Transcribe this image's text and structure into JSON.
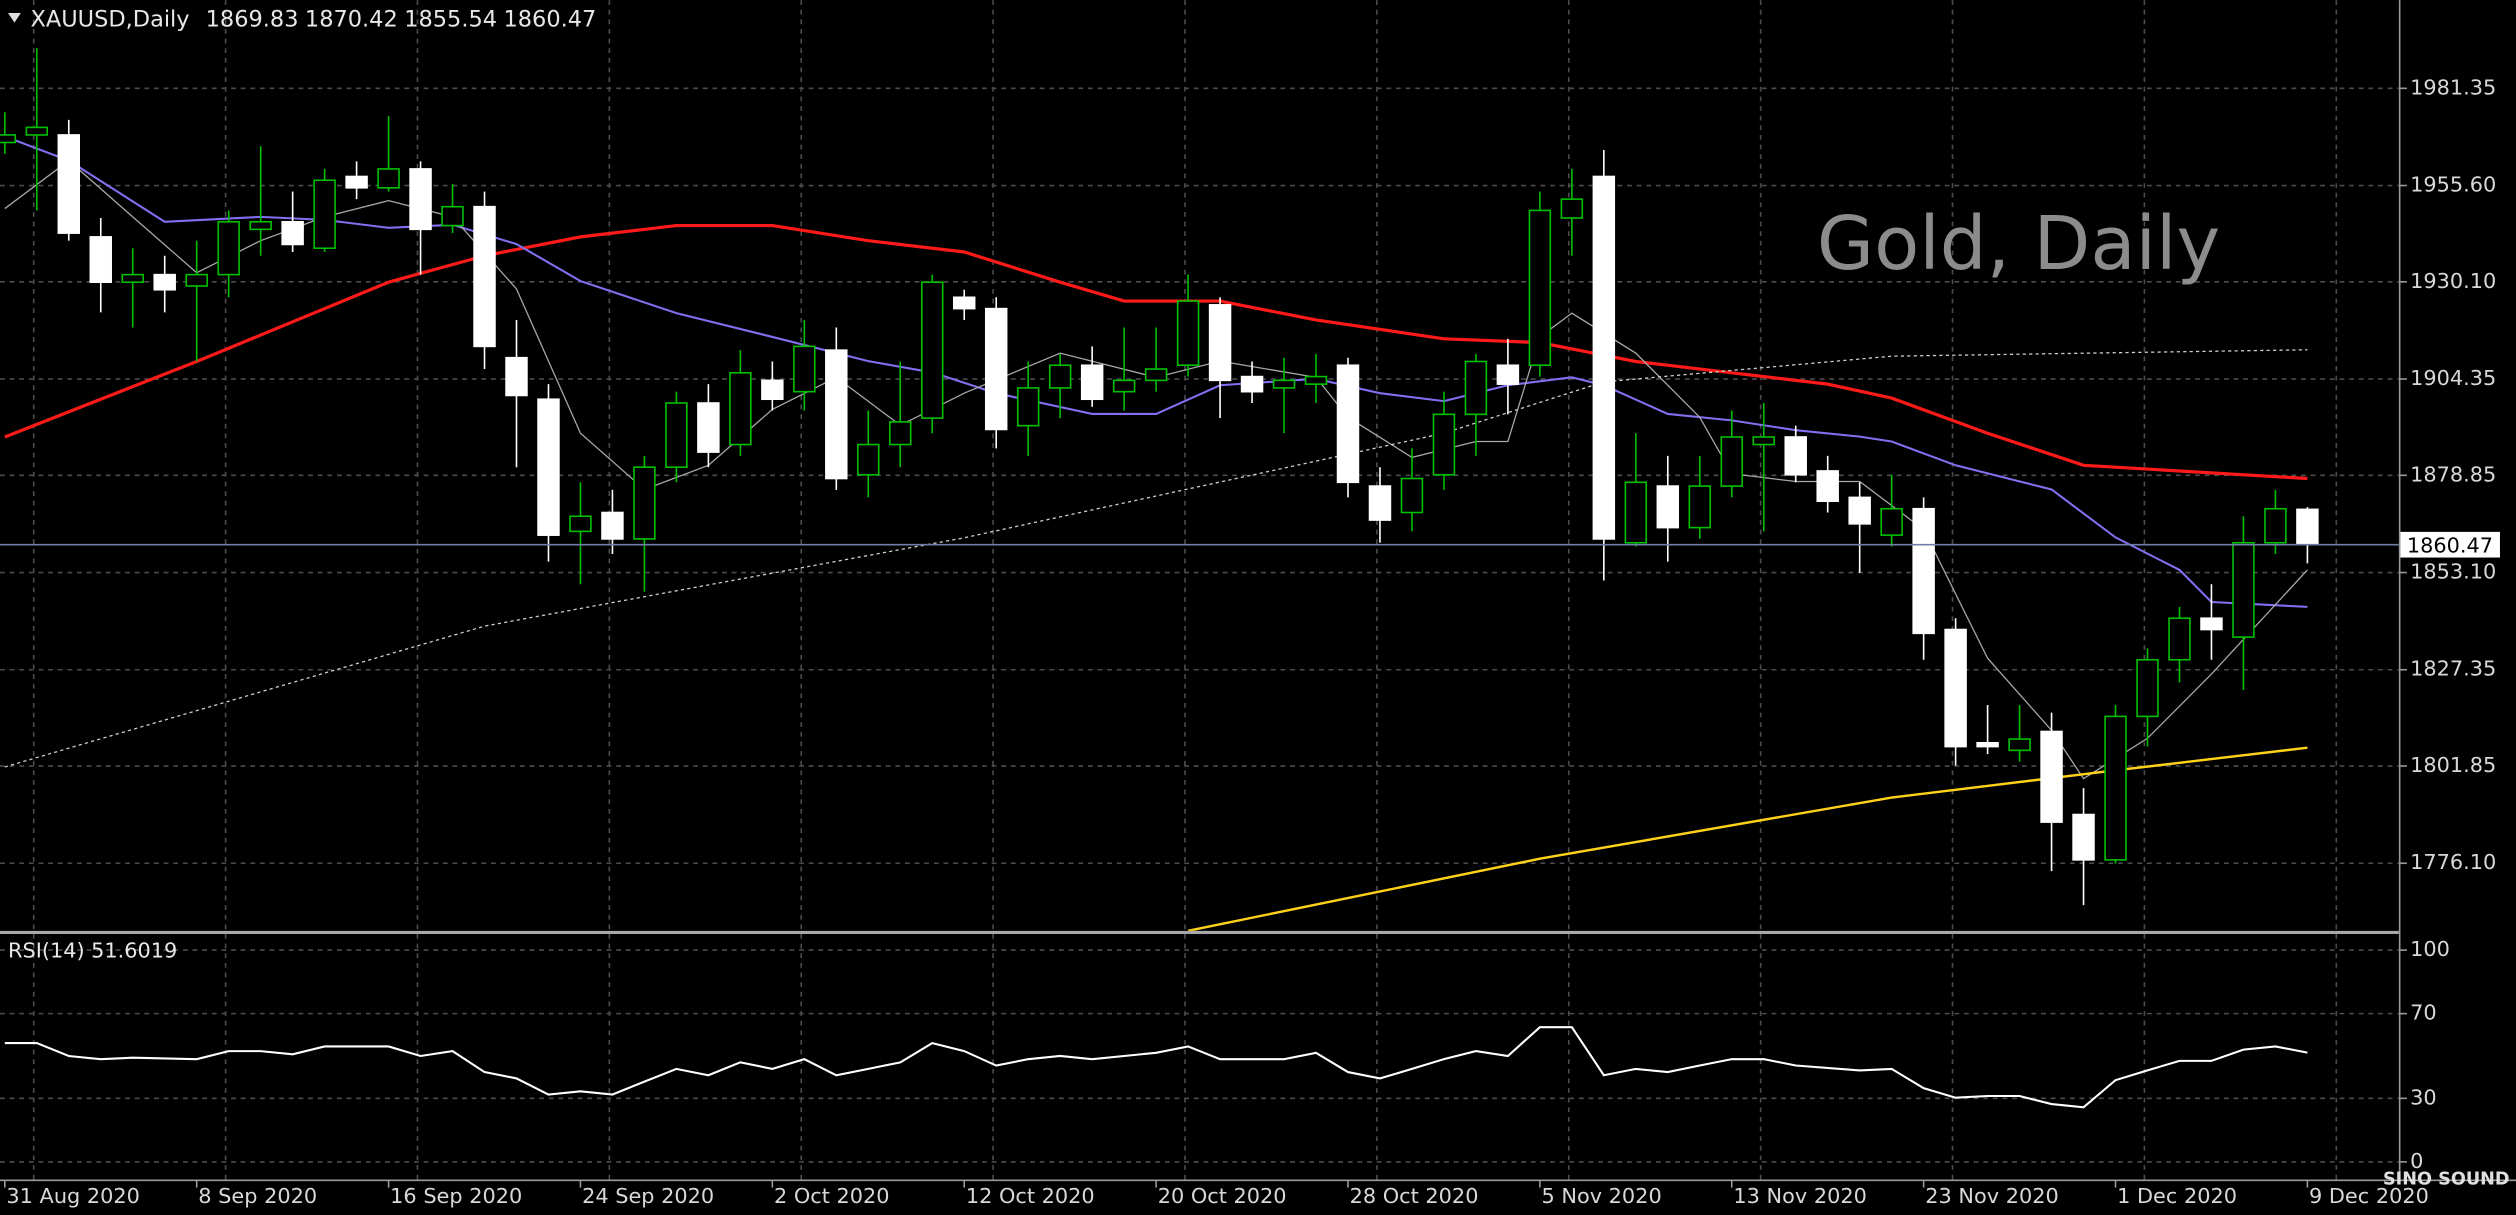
{
  "chart_data": {
    "type": "candlestick",
    "symbol": "XAUUSD,Daily",
    "watermark": "Gold, Daily",
    "branding": "SINO SOUND",
    "categories": [
      "31 Aug 2020",
      null,
      null,
      null,
      null,
      null,
      "8 Sep 2020",
      null,
      null,
      null,
      null,
      null,
      "16 Sep 2020",
      null,
      null,
      null,
      null,
      null,
      "24 Sep 2020",
      null,
      null,
      null,
      null,
      null,
      "2 Oct 2020",
      null,
      null,
      null,
      null,
      null,
      "12 Oct 2020",
      null,
      null,
      null,
      null,
      null,
      "20 Oct 2020",
      null,
      null,
      null,
      null,
      null,
      "28 Oct 2020",
      null,
      null,
      null,
      null,
      null,
      "5 Nov 2020",
      null,
      null,
      null,
      null,
      null,
      "13 Nov 2020",
      null,
      null,
      null,
      null,
      null,
      "23 Nov 2020",
      null,
      null,
      null,
      null,
      null,
      "1 Dec 2020",
      null,
      null,
      null,
      null,
      null,
      "9 Dec 2020"
    ],
    "open": [
      1967,
      1969,
      1969,
      1942,
      1930,
      1932,
      1929,
      1932,
      1944,
      1946,
      1939,
      1958,
      1955,
      1960,
      1945,
      1950,
      1910,
      1899,
      1864,
      1869,
      1862,
      1881,
      1898,
      1887,
      1904,
      1901,
      1912,
      1879,
      1887,
      1894,
      1926,
      1923,
      1892,
      1902,
      1908,
      1901,
      1904,
      1908,
      1924,
      1905,
      1902,
      1903,
      1908,
      1876,
      1869,
      1879,
      1895,
      1908,
      1908,
      1947,
      1958,
      1861,
      1876,
      1865,
      1876,
      1887,
      1889,
      1880,
      1873,
      1863,
      1870,
      1838,
      1808,
      1806,
      1811,
      1789,
      1777,
      1815,
      1830,
      1841,
      1836,
      1861,
      1869.83
    ],
    "high": [
      1975,
      1992,
      1973,
      1947,
      1939,
      1937,
      1941,
      1949,
      1966,
      1954,
      1960,
      1962,
      1974,
      1962,
      1956,
      1954,
      1920,
      1903,
      1877,
      1875,
      1884,
      1901,
      1903,
      1912,
      1909,
      1920,
      1918,
      1896,
      1909,
      1932,
      1928,
      1926,
      1909,
      1911,
      1913,
      1918,
      1918,
      1932,
      1926,
      1909,
      1910,
      1911,
      1910,
      1881,
      1886,
      1901,
      1911,
      1915,
      1954,
      1960,
      1965,
      1890,
      1884,
      1884,
      1896,
      1898,
      1892,
      1884,
      1877,
      1879,
      1873,
      1841,
      1818,
      1818,
      1816,
      1796,
      1818,
      1833,
      1844,
      1850,
      1868,
      1875,
      1870.42
    ],
    "low": [
      1964,
      1949,
      1941,
      1922,
      1918,
      1922,
      1909,
      1926,
      1937,
      1938,
      1938,
      1952,
      1954,
      1932,
      1943,
      1907,
      1881,
      1856,
      1850,
      1858,
      1848,
      1877,
      1881,
      1884,
      1896,
      1896,
      1875,
      1873,
      1881,
      1890,
      1920,
      1886,
      1884,
      1894,
      1897,
      1896,
      1901,
      1905,
      1894,
      1898,
      1890,
      1898,
      1873,
      1861,
      1864,
      1875,
      1884,
      1895,
      1905,
      1937,
      1851,
      1860,
      1856,
      1862,
      1873,
      1864,
      1877,
      1869,
      1853,
      1860,
      1830,
      1802,
      1805,
      1803,
      1774,
      1765,
      1776,
      1807,
      1824,
      1830,
      1822,
      1858,
      1855.54
    ],
    "close": [
      1969,
      1971,
      1943,
      1930,
      1932,
      1928,
      1932,
      1946,
      1946,
      1940,
      1957,
      1955,
      1960,
      1944,
      1950,
      1913,
      1900,
      1863,
      1868,
      1862,
      1881,
      1898,
      1885,
      1906,
      1899,
      1913,
      1878,
      1887,
      1893,
      1930,
      1923,
      1891,
      1902,
      1908,
      1899,
      1904,
      1907,
      1925,
      1904,
      1901,
      1904,
      1905,
      1877,
      1867,
      1878,
      1895,
      1909,
      1903,
      1949,
      1952,
      1862,
      1877,
      1865,
      1876,
      1889,
      1889,
      1879,
      1872,
      1866,
      1870,
      1837,
      1807,
      1807,
      1809,
      1787,
      1777,
      1815,
      1830,
      1841,
      1838,
      1861,
      1870,
      1860.47
    ],
    "up_color": "#00c000",
    "down_color": "#ffffff",
    "ylim": [
      1758.2,
      2004.7
    ],
    "yticks": [
      1981.35,
      {
        "value": 1955.6,
        "label": "1955.60"
      },
      {
        "value": 1930.1,
        "label": "1930.10"
      },
      1904.35,
      1878.85,
      {
        "value": 1853.1,
        "label": "1853.10"
      },
      1827.35,
      1801.85,
      {
        "value": 1776.1,
        "label": "1776.10"
      }
    ],
    "grid": true,
    "series": [
      {
        "color": "#ff1a1a",
        "width": 2,
        "x": [
          0,
          6,
          12,
          15,
          18,
          21,
          24,
          27,
          30,
          33,
          35,
          38,
          41,
          45,
          48,
          51,
          54,
          57,
          59,
          62,
          65,
          68,
          72
        ],
        "values": [
          1889,
          1909,
          1930,
          1937,
          1942,
          1945,
          1945,
          1941,
          1938,
          1930,
          1925,
          1925,
          1920,
          1915,
          1914,
          1909,
          1906,
          1903,
          1899.3,
          1890,
          1881.5,
          1880,
          1878
        ]
      },
      {
        "color": "#8070f0",
        "width": 1.3,
        "x": [
          0,
          2,
          5,
          8,
          10,
          12,
          14,
          16,
          18,
          21,
          24,
          27,
          29,
          31,
          34,
          36,
          38,
          41,
          43,
          45,
          47,
          49,
          50,
          52,
          54,
          56,
          58,
          59,
          61,
          64,
          66,
          68,
          69,
          72
        ],
        "values": [
          1968.6,
          1962.2,
          1946,
          1947.3,
          1946.5,
          1944.4,
          1945.2,
          1940.1,
          1930.3,
          1921.8,
          1915.5,
          1909.1,
          1906.1,
          1900.6,
          1895.1,
          1895.1,
          1902.7,
          1904.4,
          1900.6,
          1898.5,
          1902.7,
          1904.8,
          1902.7,
          1895.1,
          1893.4,
          1890.8,
          1889.1,
          1887.8,
          1881.5,
          1875.1,
          1862.4,
          1853.8,
          1845.3,
          1844
        ]
      },
      {
        "color": "#a8a8a8",
        "width": 0.8,
        "x": [
          0,
          2,
          4,
          6,
          8,
          10,
          12,
          14,
          16,
          18,
          20,
          22,
          24,
          26,
          28,
          30,
          33,
          36,
          38,
          41,
          42,
          44,
          46,
          47,
          48,
          49,
          51,
          53,
          54,
          56,
          58,
          60,
          62,
          64,
          65,
          67,
          69,
          72
        ],
        "values": [
          1949.5,
          1962.2,
          1947.3,
          1932.5,
          1941,
          1947.3,
          1951.6,
          1947.3,
          1928.2,
          1890,
          1875.1,
          1881.5,
          1896.3,
          1904.8,
          1892.1,
          1900.6,
          1911.2,
          1904.8,
          1909.1,
          1904.8,
          1894.2,
          1883.6,
          1887.8,
          1887.8,
          1915.5,
          1921.8,
          1911.2,
          1894.2,
          1879.3,
          1877.2,
          1877.2,
          1864.5,
          1830.4,
          1811.3,
          1798.5,
          1809.2,
          1826.2,
          1853.8
        ]
      },
      {
        "color": "#cfcfcf",
        "width": 0.8,
        "dash": "2,2",
        "x": [
          0,
          15,
          30,
          45,
          50,
          59,
          72
        ],
        "values": [
          1801.6,
          1838.9,
          1862.3,
          1890,
          1903.6,
          1910.4,
          1912.1
        ]
      },
      {
        "color": "#ffd21a",
        "width": 1.5,
        "x": [
          37,
          48,
          59,
          66,
          72
        ],
        "values": [
          1758.2,
          1777.3,
          1793.5,
          1800.7,
          1806.7
        ]
      }
    ],
    "rsi": {
      "type": "line",
      "name": "RSI(14)",
      "color": "#ffffff",
      "x": [
        0,
        1,
        2,
        3,
        4,
        6,
        7,
        8,
        9,
        10,
        12,
        13,
        14,
        15,
        16,
        17,
        18,
        19,
        20,
        21,
        22,
        23,
        24,
        25,
        26,
        27,
        28,
        29,
        30,
        31,
        32,
        33,
        34,
        36,
        37,
        38,
        40,
        41,
        42,
        43,
        44,
        45,
        46,
        47,
        48,
        49,
        50,
        51,
        52,
        53,
        54,
        55,
        56,
        58,
        59,
        60,
        61,
        62,
        63,
        64,
        65,
        66,
        67,
        68,
        69,
        70,
        71,
        72
      ],
      "values": [
        56.1,
        56.1,
        50,
        48.5,
        49.2,
        48.5,
        52.3,
        52.3,
        50.8,
        54.5,
        54.5,
        50,
        52.3,
        42.4,
        39.4,
        31.8,
        33.3,
        31.8,
        37.9,
        43.9,
        40.9,
        47,
        43.9,
        48.5,
        40.9,
        43.9,
        47,
        56.1,
        52.3,
        45.5,
        48.5,
        50,
        48.5,
        51.5,
        54.5,
        48.5,
        48.5,
        51.5,
        42.4,
        39.4,
        43.9,
        48.5,
        52.3,
        50,
        63.6,
        63.6,
        40.9,
        43.9,
        42.4,
        45.5,
        48.5,
        48.5,
        45.5,
        43.2,
        43.9,
        34.8,
        30.3,
        31.1,
        31.1,
        27.3,
        25.8,
        38.6,
        43.2,
        47.7,
        47.7,
        53,
        54.5,
        51.6019
      ],
      "ylim": [
        0,
        100
      ],
      "yticks": [
        0,
        30,
        70,
        100
      ]
    }
  }
}
